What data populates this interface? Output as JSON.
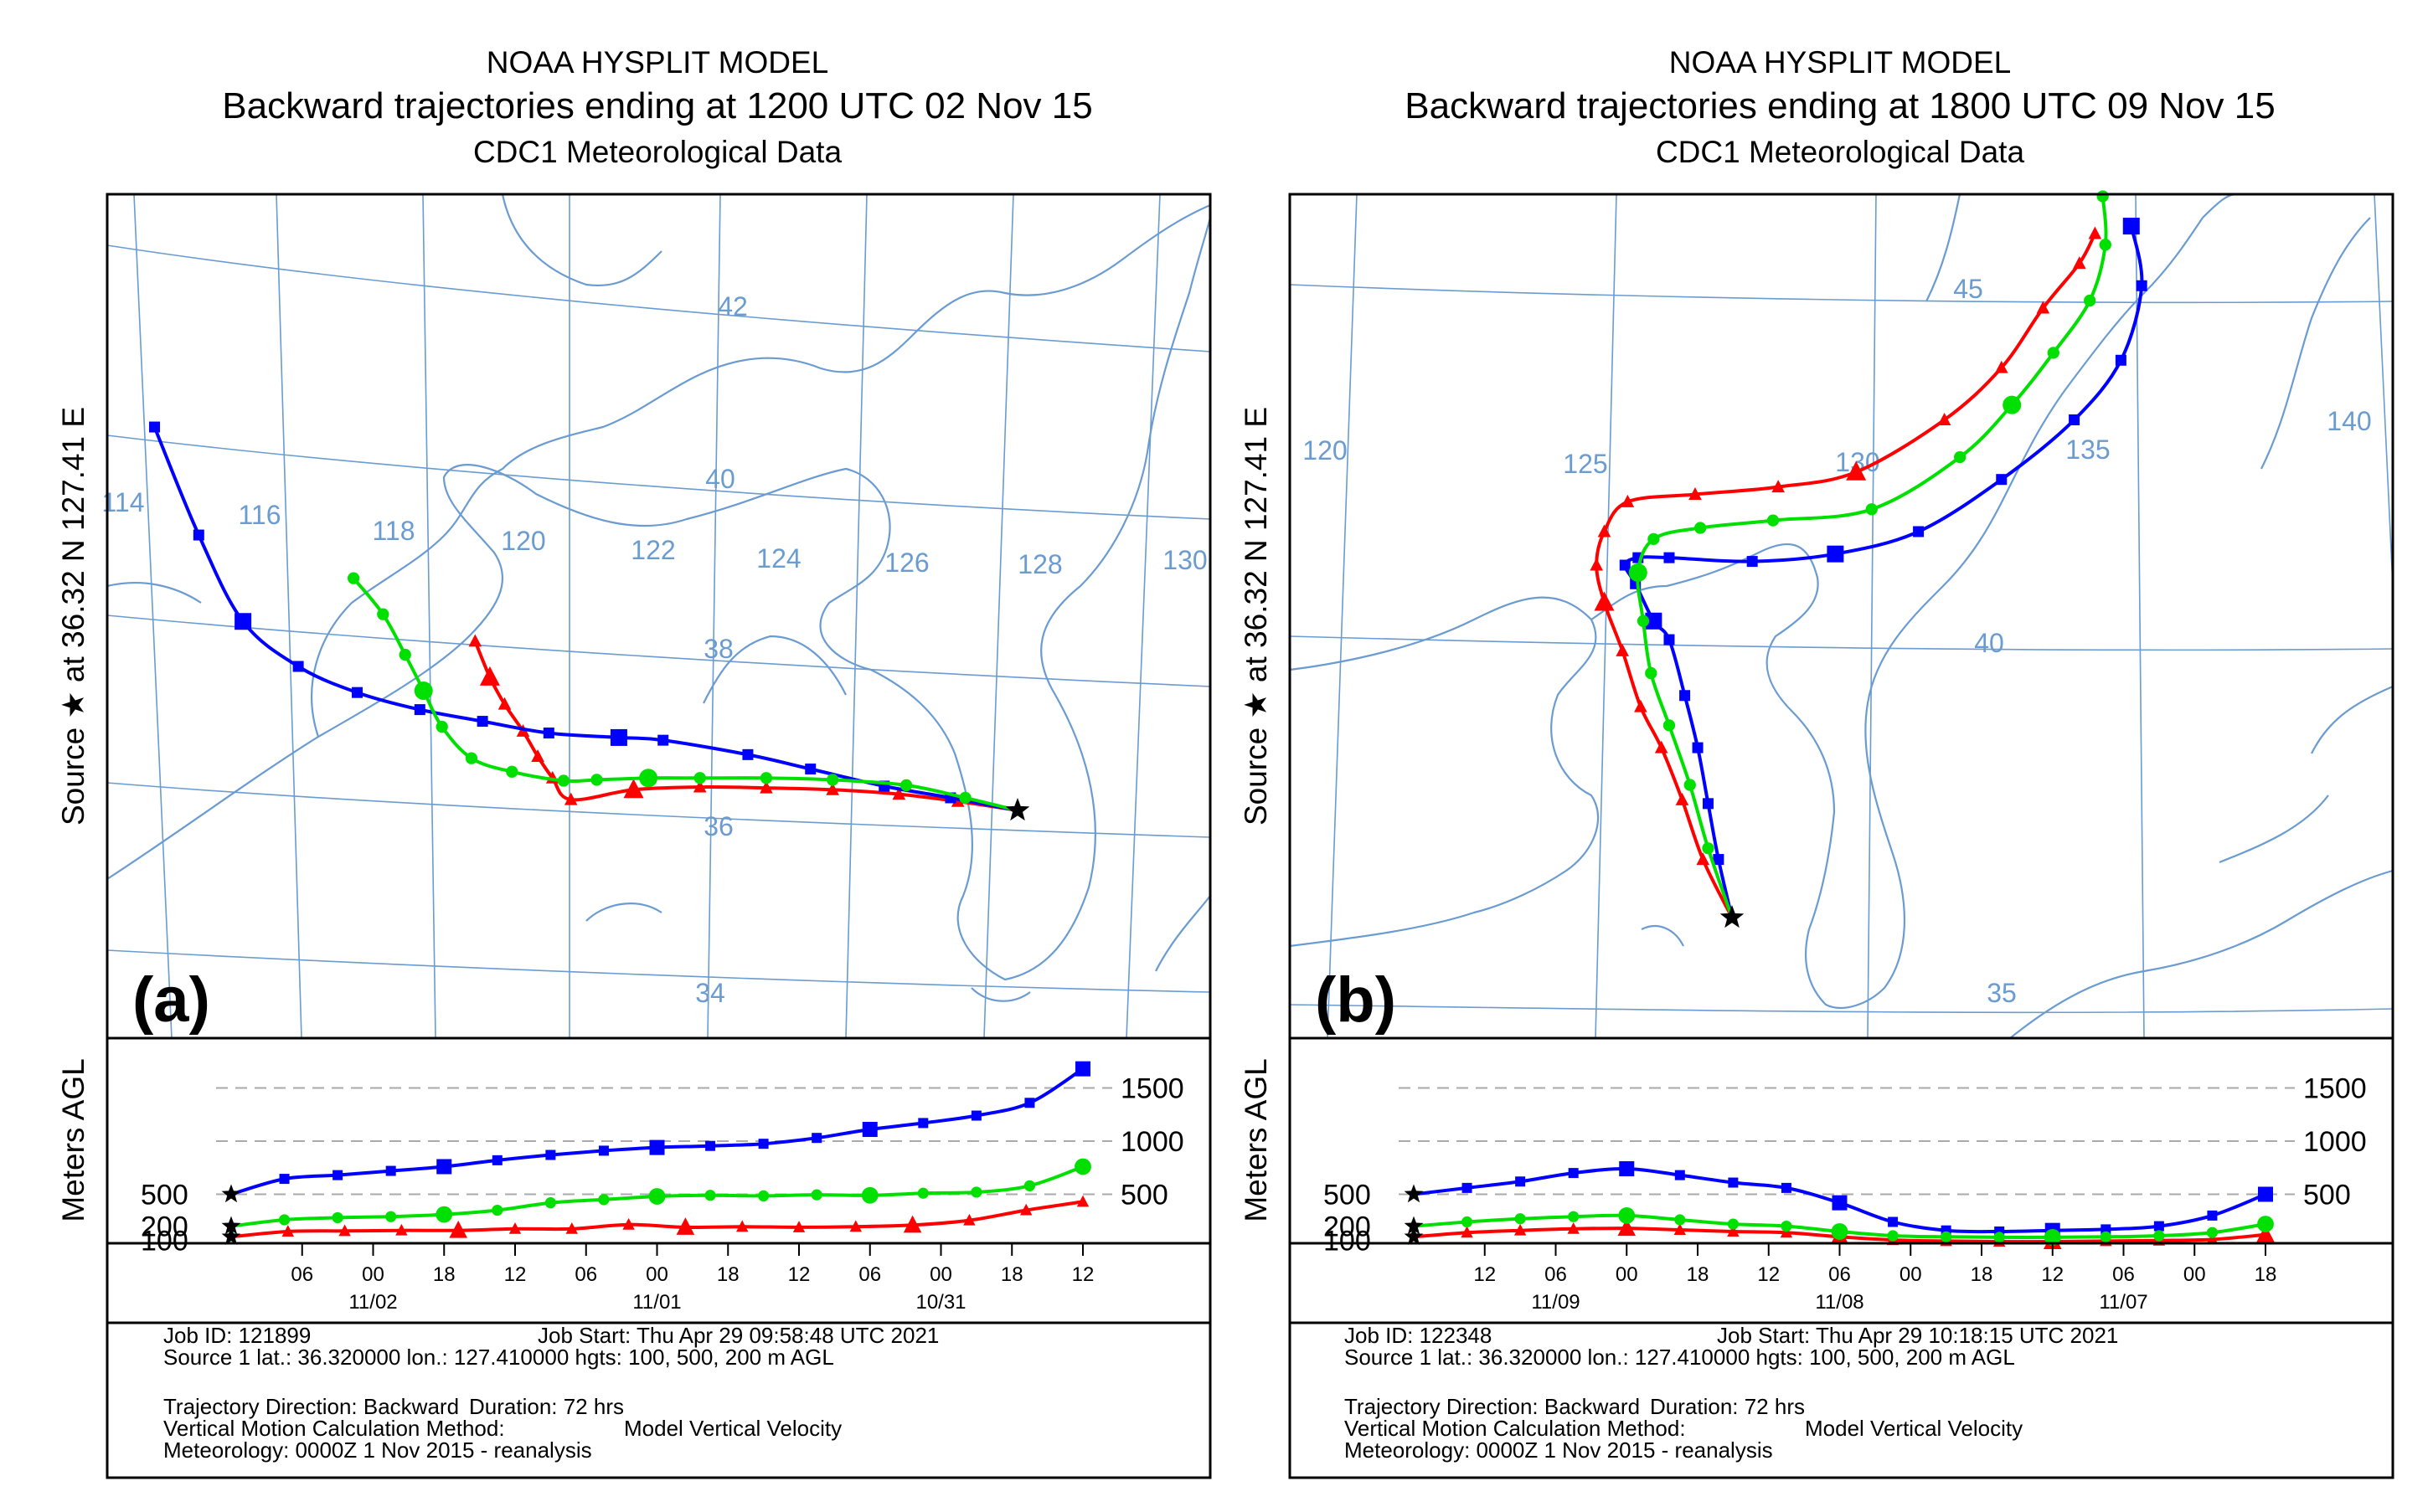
{
  "figure": {
    "panels": 2
  },
  "chart_data": [
    {
      "type": "line",
      "panel_label": "(a)",
      "title": "NOAA HYSPLIT MODEL",
      "subtitle": "Backward trajectories ending at 1200 UTC 02 Nov 15",
      "data_source": "CDC1 Meteorological Data",
      "side_label": "Source ★ at 36.32 N 127.41 E",
      "lat_labels": [
        "42",
        "40",
        "38",
        "36",
        "34"
      ],
      "lon_labels": [
        "114",
        "116",
        "118",
        "120",
        "122",
        "124",
        "126",
        "128",
        "130"
      ],
      "source": {
        "lat": 36.32,
        "lon": 127.41
      },
      "series": [
        {
          "name": "100 m AGL",
          "color": "#ff0000",
          "marker": "triangle",
          "lon": [
            127.41,
            126.6,
            125.8,
            124.9,
            124.0,
            123.1,
            122.2,
            121.35,
            121.1,
            120.9,
            120.7,
            120.45,
            120.25,
            120.05
          ],
          "lat": [
            36.32,
            36.42,
            36.5,
            36.55,
            36.57,
            36.58,
            36.55,
            36.44,
            36.68,
            36.92,
            37.2,
            37.5,
            37.8,
            38.2
          ]
        },
        {
          "name": "500 m AGL",
          "color": "#0000ff",
          "marker": "square",
          "lon": [
            127.41,
            126.5,
            125.6,
            124.6,
            123.75,
            122.6,
            122.0,
            121.05,
            120.15,
            119.3,
            118.45,
            117.65,
            116.9,
            116.3,
            115.7
          ],
          "lat": [
            36.32,
            36.46,
            36.59,
            36.78,
            36.94,
            37.1,
            37.13,
            37.18,
            37.31,
            37.44,
            37.63,
            37.92,
            38.42,
            39.38,
            40.58
          ]
        },
        {
          "name": "200 m AGL",
          "color": "#00e000",
          "marker": "circle",
          "lon": [
            127.41,
            126.7,
            125.9,
            124.9,
            124.0,
            123.1,
            122.4,
            121.7,
            121.25,
            120.55,
            120.0,
            119.6,
            119.35,
            119.1,
            118.8,
            118.4
          ],
          "lat": [
            36.32,
            36.46,
            36.6,
            36.66,
            36.68,
            36.68,
            36.68,
            36.66,
            36.65,
            36.75,
            36.9,
            37.25,
            37.65,
            38.05,
            38.5,
            38.9
          ]
        }
      ],
      "height_chart": {
        "ylabel": "Meters AGL",
        "y_ticks": [
          500,
          1000,
          1500
        ],
        "left_labels": [
          "500",
          "200",
          "100"
        ],
        "x_hours_back": [
          0,
          6,
          12,
          18,
          24,
          30,
          36,
          42,
          48,
          54,
          60,
          66,
          72
        ],
        "x_tick_labels": [
          "06",
          "00",
          "18",
          "12",
          "06",
          "00",
          "18",
          "12",
          "06",
          "00",
          "18",
          "12"
        ],
        "date_labels": [
          "11/02",
          "11/01",
          "10/31"
        ],
        "series": [
          {
            "name": "100 m AGL",
            "color": "#ff0000",
            "marker": "triangle",
            "values": [
              100,
              150,
              155,
              160,
              160,
              175,
              175,
              215,
              190,
              195,
              190,
              195,
              210,
              255,
              350,
              430
            ]
          },
          {
            "name": "500 m AGL",
            "color": "#0000ff",
            "marker": "square",
            "values": [
              500,
              645,
              680,
              720,
              760,
              820,
              870,
              910,
              940,
              955,
              975,
              1030,
              1110,
              1170,
              1240,
              1360,
              1680
            ]
          },
          {
            "name": "200 m AGL",
            "color": "#00e000",
            "marker": "circle",
            "values": [
              200,
              260,
              280,
              290,
              310,
              350,
              420,
              450,
              480,
              490,
              485,
              495,
              490,
              510,
              520,
              580,
              760
            ]
          }
        ]
      },
      "info": {
        "job_id": "Job ID: 121899",
        "job_start": "Job Start: Thu Apr 29 09:58:48 UTC 2021",
        "source_line": "Source 1 lat.: 36.320000  lon.: 127.410000  hgts: 100, 500, 200 m AGL",
        "direction": "Trajectory Direction: Backward",
        "duration": "Duration: 72 hrs",
        "vertical": "Vertical Motion Calculation Method:",
        "vertical_value": "Model Vertical Velocity",
        "meteorology": "Meteorology: 0000Z  1 Nov 2015 - reanalysis"
      }
    },
    {
      "type": "line",
      "panel_label": "(b)",
      "title": "NOAA HYSPLIT MODEL",
      "subtitle": "Backward trajectories ending at 1800 UTC 09 Nov 15",
      "data_source": "CDC1 Meteorological Data",
      "side_label": "Source ★ at 36.32 N 127.41 E",
      "lat_labels": [
        "45",
        "40",
        "35"
      ],
      "lon_labels": [
        "120",
        "125",
        "130",
        "135",
        "140"
      ],
      "source": {
        "lat": 36.32,
        "lon": 127.41
      },
      "series": [
        {
          "name": "100 m AGL",
          "color": "#ff0000",
          "marker": "triangle",
          "lon": [
            127.41,
            126.85,
            126.45,
            126.05,
            125.65,
            125.3,
            124.95,
            124.8,
            124.95,
            125.4,
            126.7,
            128.3,
            129.8,
            131.5,
            132.6,
            133.4,
            134.1,
            134.4
          ],
          "lat": [
            36.32,
            37.1,
            37.9,
            38.6,
            39.15,
            39.9,
            40.55,
            41.05,
            41.5,
            41.9,
            42.0,
            42.1,
            42.3,
            43.0,
            43.7,
            44.5,
            45.1,
            45.5
          ]
        },
        {
          "name": "500 m AGL",
          "color": "#0000ff",
          "marker": "square",
          "lon": [
            127.41,
            127.15,
            126.95,
            126.75,
            126.5,
            126.2,
            125.9,
            125.55,
            125.35,
            125.6,
            126.2,
            127.8,
            129.4,
            131.0,
            132.6,
            134.0,
            134.9,
            135.3,
            135.1
          ],
          "lat": [
            36.32,
            37.1,
            37.85,
            38.6,
            39.3,
            40.05,
            40.3,
            40.8,
            41.05,
            41.15,
            41.15,
            41.1,
            41.2,
            41.5,
            42.2,
            43.0,
            43.8,
            44.8,
            45.6
          ]
        },
        {
          "name": "200 m AGL",
          "color": "#00e000",
          "marker": "circle",
          "lon": [
            127.41,
            126.95,
            126.6,
            126.2,
            125.85,
            125.7,
            125.6,
            125.9,
            126.8,
            128.2,
            130.1,
            131.8,
            132.8,
            133.6,
            134.3,
            134.6,
            134.55
          ],
          "lat": [
            36.32,
            37.25,
            38.1,
            38.9,
            39.6,
            40.3,
            40.95,
            41.4,
            41.55,
            41.65,
            41.8,
            42.5,
            43.2,
            43.9,
            44.6,
            45.35,
            46.0
          ]
        }
      ],
      "height_chart": {
        "ylabel": "Meters AGL",
        "y_ticks": [
          500,
          1000,
          1500
        ],
        "left_labels": [
          "500",
          "200",
          "100"
        ],
        "x_hours_back": [
          0,
          6,
          12,
          18,
          24,
          30,
          36,
          42,
          48,
          54,
          60,
          66,
          72
        ],
        "x_tick_labels": [
          "12",
          "06",
          "00",
          "18",
          "12",
          "06",
          "00",
          "18",
          "12",
          "06",
          "00",
          "18"
        ],
        "date_labels": [
          "11/09",
          "11/08",
          "11/07"
        ],
        "series": [
          {
            "name": "100 m AGL",
            "color": "#ff0000",
            "marker": "triangle",
            "values": [
              100,
              140,
              160,
              175,
              180,
              165,
              150,
              140,
              100,
              70,
              60,
              55,
              55,
              60,
              65,
              75,
              120
            ]
          },
          {
            "name": "500 m AGL",
            "color": "#0000ff",
            "marker": "square",
            "values": [
              500,
              560,
              620,
              700,
              740,
              680,
              610,
              560,
              420,
              240,
              160,
              150,
              160,
              170,
              200,
              300,
              500
            ]
          },
          {
            "name": "200 m AGL",
            "color": "#00e000",
            "marker": "circle",
            "values": [
              200,
              240,
              270,
              290,
              300,
              260,
              220,
              200,
              150,
              110,
              100,
              95,
              95,
              100,
              110,
              140,
              220
            ]
          }
        ]
      },
      "info": {
        "job_id": "Job ID: 122348",
        "job_start": "Job Start: Thu Apr 29 10:18:15 UTC 2021",
        "source_line": "Source 1 lat.: 36.320000  lon.: 127.410000  hgts: 100, 500, 200 m AGL",
        "direction": "Trajectory Direction: Backward",
        "duration": "Duration: 72 hrs",
        "vertical": "Vertical Motion Calculation Method:",
        "vertical_value": "Model Vertical Velocity",
        "meteorology": "Meteorology: 0000Z  1 Nov 2015 - reanalysis"
      }
    }
  ]
}
